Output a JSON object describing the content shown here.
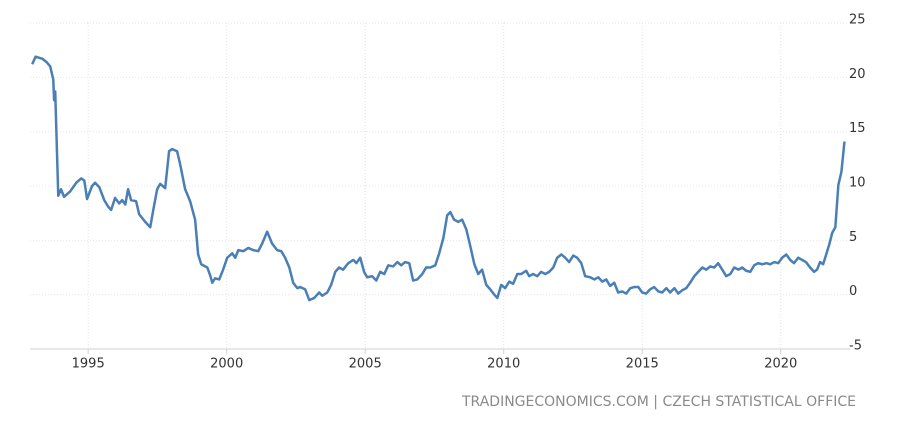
{
  "chart_data": {
    "type": "line",
    "x": [
      1992.98,
      1993.1,
      1993.35,
      1993.5,
      1993.63,
      1993.74,
      1993.77,
      1993.81,
      1993.92,
      1994.02,
      1994.13,
      1994.35,
      1994.57,
      1994.75,
      1994.86,
      1994.96,
      1995.14,
      1995.25,
      1995.4,
      1995.58,
      1995.72,
      1995.83,
      1995.97,
      1996.12,
      1996.23,
      1996.34,
      1996.44,
      1996.55,
      1996.73,
      1996.84,
      1997.06,
      1997.24,
      1997.35,
      1997.49,
      1997.6,
      1997.78,
      1997.92,
      1998.03,
      1998.21,
      1998.32,
      1998.5,
      1998.68,
      1998.86,
      1998.97,
      1999.08,
      1999.3,
      1999.4,
      1999.48,
      1999.58,
      1999.73,
      1999.87,
      2000.02,
      2000.2,
      2000.31,
      2000.42,
      2000.6,
      2000.78,
      2000.96,
      2001.14,
      2001.28,
      2001.46,
      2001.64,
      2001.82,
      2001.97,
      2002.11,
      2002.26,
      2002.4,
      2002.55,
      2002.65,
      2002.83,
      2002.98,
      2003.16,
      2003.34,
      2003.45,
      2003.63,
      2003.77,
      2003.92,
      2004.06,
      2004.2,
      2004.39,
      2004.57,
      2004.68,
      2004.82,
      2004.96,
      2005.07,
      2005.25,
      2005.4,
      2005.54,
      2005.69,
      2005.83,
      2006.01,
      2006.16,
      2006.3,
      2006.44,
      2006.59,
      2006.73,
      2006.88,
      2007.06,
      2007.2,
      2007.35,
      2007.53,
      2007.67,
      2007.82,
      2007.96,
      2008.07,
      2008.21,
      2008.36,
      2008.5,
      2008.65,
      2008.79,
      2008.94,
      2009.08,
      2009.22,
      2009.37,
      2009.51,
      2009.66,
      2009.77,
      2009.91,
      2010.05,
      2010.2,
      2010.34,
      2010.49,
      2010.63,
      2010.81,
      2010.92,
      2011.06,
      2011.21,
      2011.35,
      2011.5,
      2011.64,
      2011.79,
      2011.93,
      2012.08,
      2012.22,
      2012.36,
      2012.51,
      2012.65,
      2012.8,
      2012.94,
      2013.12,
      2013.27,
      2013.41,
      2013.56,
      2013.7,
      2013.84,
      2013.99,
      2014.13,
      2014.28,
      2014.42,
      2014.57,
      2014.71,
      2014.86,
      2015.0,
      2015.14,
      2015.29,
      2015.43,
      2015.58,
      2015.72,
      2015.87,
      2016.01,
      2016.16,
      2016.3,
      2016.44,
      2016.59,
      2016.73,
      2016.88,
      2017.02,
      2017.17,
      2017.31,
      2017.46,
      2017.6,
      2017.74,
      2017.89,
      2018.03,
      2018.18,
      2018.32,
      2018.47,
      2018.61,
      2018.75,
      2018.9,
      2019.04,
      2019.19,
      2019.33,
      2019.48,
      2019.62,
      2019.77,
      2019.91,
      2020.05,
      2020.2,
      2020.34,
      2020.48,
      2020.63,
      2020.77,
      2020.91,
      2021.06,
      2021.2,
      2021.31,
      2021.42,
      2021.53,
      2021.64,
      2021.75,
      2021.86,
      2021.97,
      2022.08,
      2022.19,
      2022.3
    ],
    "values": [
      21.2,
      21.9,
      21.7,
      21.4,
      21.0,
      19.8,
      17.9,
      18.7,
      9.1,
      9.7,
      9.0,
      9.5,
      10.3,
      10.7,
      10.5,
      8.8,
      10.0,
      10.3,
      9.9,
      8.7,
      8.1,
      7.8,
      8.9,
      8.4,
      8.7,
      8.3,
      9.7,
      8.7,
      8.6,
      7.4,
      6.7,
      6.2,
      7.8,
      9.7,
      10.2,
      9.8,
      13.2,
      13.4,
      13.2,
      12.0,
      9.7,
      8.6,
      6.9,
      3.7,
      2.8,
      2.5,
      1.8,
      1.1,
      1.5,
      1.4,
      2.3,
      3.4,
      3.8,
      3.4,
      4.1,
      4.0,
      4.3,
      4.1,
      4.0,
      4.7,
      5.8,
      4.7,
      4.1,
      4.0,
      3.4,
      2.5,
      1.1,
      0.6,
      0.7,
      0.5,
      -0.5,
      -0.3,
      0.2,
      -0.1,
      0.2,
      0.9,
      2.1,
      2.5,
      2.3,
      2.9,
      3.2,
      2.9,
      3.4,
      2.1,
      1.6,
      1.7,
      1.3,
      2.1,
      1.9,
      2.7,
      2.6,
      3.0,
      2.7,
      3.0,
      2.9,
      1.3,
      1.4,
      1.9,
      2.5,
      2.5,
      2.7,
      3.8,
      5.2,
      7.3,
      7.6,
      6.9,
      6.7,
      6.9,
      6.0,
      4.5,
      2.8,
      1.9,
      2.3,
      0.9,
      0.5,
      0.0,
      -0.3,
      0.9,
      0.6,
      1.2,
      1.0,
      1.9,
      1.9,
      2.2,
      1.7,
      1.9,
      1.7,
      2.1,
      1.9,
      2.1,
      2.5,
      3.4,
      3.7,
      3.4,
      3.0,
      3.6,
      3.4,
      2.9,
      1.7,
      1.6,
      1.4,
      1.6,
      1.2,
      1.4,
      0.8,
      1.1,
      0.2,
      0.3,
      0.1,
      0.6,
      0.7,
      0.7,
      0.2,
      0.1,
      0.5,
      0.7,
      0.3,
      0.2,
      0.6,
      0.2,
      0.6,
      0.1,
      0.4,
      0.6,
      1.1,
      1.7,
      2.1,
      2.5,
      2.3,
      2.6,
      2.5,
      2.9,
      2.3,
      1.7,
      1.9,
      2.5,
      2.3,
      2.5,
      2.2,
      2.1,
      2.7,
      2.9,
      2.8,
      2.9,
      2.8,
      3.0,
      2.9,
      3.4,
      3.7,
      3.2,
      2.9,
      3.4,
      3.2,
      3.0,
      2.5,
      2.1,
      2.3,
      3.0,
      2.8,
      3.7,
      4.6,
      5.7,
      6.2,
      10.1,
      11.3,
      14.1
    ],
    "color": "#4a7fb5",
    "xlim": [
      1992.9,
      2022.5
    ],
    "xticks": [
      1995,
      2000,
      2005,
      2010,
      2015,
      2020
    ],
    "ylim": [
      -5,
      25
    ],
    "yticks": [
      -5,
      0,
      5,
      10,
      15,
      20,
      25
    ],
    "grid": true,
    "source": "TRADINGECONOMICS.COM | CZECH STATISTICAL OFFICE"
  }
}
